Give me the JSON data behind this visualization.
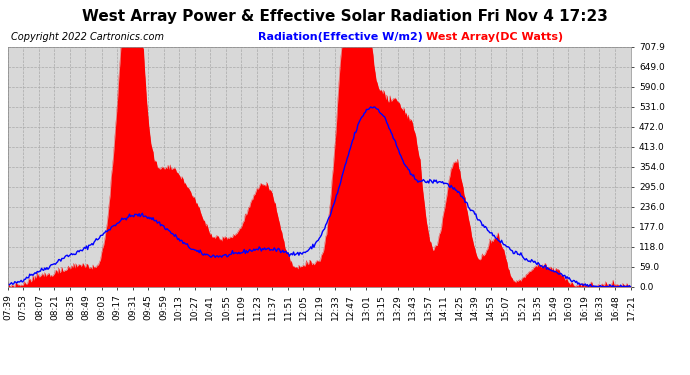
{
  "title": "West Array Power & Effective Solar Radiation Fri Nov 4 17:23",
  "copyright": "Copyright 2022 Cartronics.com",
  "legend_radiation": "Radiation(Effective W/m2)",
  "legend_west": "West Array(DC Watts)",
  "radiation_color": "blue",
  "west_color": "red",
  "bg_color": "#ffffff",
  "plot_bg_color": "#d8d8d8",
  "grid_color": "#aaaaaa",
  "ylim": [
    0.0,
    707.9
  ],
  "yticks": [
    0.0,
    59.0,
    118.0,
    177.0,
    236.0,
    295.0,
    354.0,
    413.0,
    472.0,
    531.0,
    590.0,
    649.0,
    707.9
  ],
  "title_fontsize": 11,
  "copyright_fontsize": 7,
  "legend_fontsize": 8,
  "tick_fontsize": 6.5,
  "x_tick_labels": [
    "07:39",
    "07:53",
    "08:07",
    "08:21",
    "08:35",
    "08:49",
    "09:03",
    "09:17",
    "09:31",
    "09:45",
    "09:59",
    "10:13",
    "10:27",
    "10:41",
    "10:55",
    "11:09",
    "11:23",
    "11:37",
    "11:51",
    "12:05",
    "12:19",
    "12:33",
    "12:47",
    "13:01",
    "13:15",
    "13:29",
    "13:43",
    "13:57",
    "14:11",
    "14:25",
    "14:39",
    "14:53",
    "15:07",
    "15:21",
    "15:35",
    "15:49",
    "16:03",
    "16:19",
    "16:33",
    "16:48",
    "17:21"
  ]
}
